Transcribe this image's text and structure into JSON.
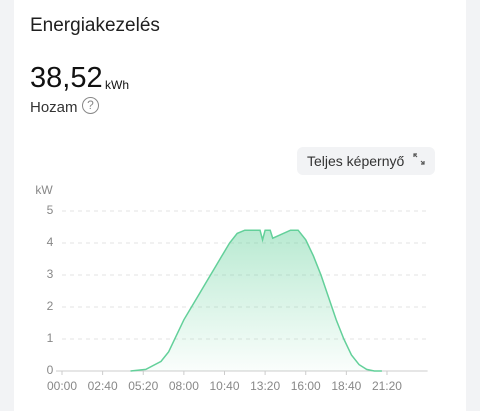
{
  "header": {
    "title": "Energiakezelés",
    "value": "38,52",
    "unit": "kWh",
    "label": "Hozam",
    "help": "?"
  },
  "ui": {
    "button": "Teljes képernyő"
  },
  "chart_data": {
    "type": "area",
    "y_label": "kW",
    "color": "#63d09a",
    "xlim": [
      0,
      1440
    ],
    "ylim": [
      0,
      5
    ],
    "yticks": [
      0,
      1,
      2,
      3,
      4,
      5
    ],
    "grid": true,
    "xticks": [
      {
        "value": 0,
        "label": "00:00"
      },
      {
        "value": 160,
        "label": "02:40"
      },
      {
        "value": 320,
        "label": "05:20"
      },
      {
        "value": 480,
        "label": "08:00"
      },
      {
        "value": 640,
        "label": "10:40"
      },
      {
        "value": 800,
        "label": "13:20"
      },
      {
        "value": 960,
        "label": "16:00"
      },
      {
        "value": 1120,
        "label": "18:40"
      },
      {
        "value": 1280,
        "label": "21:20"
      }
    ],
    "x": [
      270,
      330,
      390,
      420,
      450,
      480,
      510,
      540,
      570,
      600,
      630,
      660,
      690,
      720,
      780,
      790,
      800,
      820,
      830,
      900,
      930,
      960,
      990,
      1020,
      1050,
      1080,
      1110,
      1140,
      1170,
      1200,
      1230,
      1260
    ],
    "values": [
      0,
      0.05,
      0.3,
      0.6,
      1.1,
      1.6,
      2.0,
      2.4,
      2.8,
      3.2,
      3.6,
      4.0,
      4.3,
      4.4,
      4.4,
      4.1,
      4.4,
      4.4,
      4.15,
      4.4,
      4.4,
      4.1,
      3.6,
      3.0,
      2.3,
      1.6,
      1.0,
      0.5,
      0.2,
      0.05,
      0,
      0
    ]
  }
}
